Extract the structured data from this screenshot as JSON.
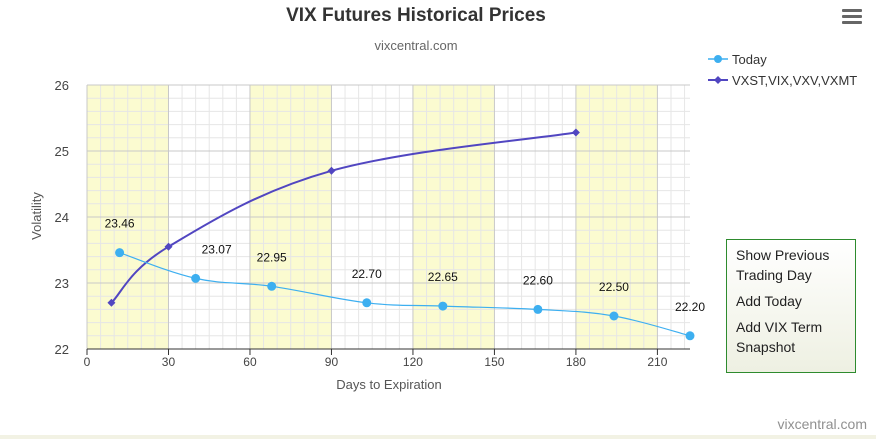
{
  "title": "VIX Futures Historical Prices",
  "subtitle": "vixcentral.com",
  "credit": "vixcentral.com",
  "menu_icon": "hamburger-menu-icon",
  "context_panel": {
    "links": [
      "Show Previous Trading Day",
      "Add Today",
      "Add VIX Term Snapshot"
    ]
  },
  "colors": {
    "today": "#3daff0",
    "term": "#5146c1",
    "band": "#fbfbd0",
    "panel_border": "#2e8b2e"
  },
  "chart_data": {
    "type": "line",
    "xlabel": "Days to Expiration",
    "ylabel": "Volatility",
    "xlim": [
      0,
      222
    ],
    "ylim": [
      22,
      26
    ],
    "x_ticks": [
      0,
      30,
      60,
      90,
      120,
      150,
      180,
      210
    ],
    "y_ticks": [
      22,
      23,
      24,
      25,
      26
    ],
    "x_tick_labels": [
      "0",
      "30",
      "60",
      "90",
      "120",
      "150",
      "180",
      "210"
    ],
    "y_tick_labels": [
      "22",
      "23",
      "24",
      "25",
      "26"
    ],
    "shaded_bands": [
      [
        0,
        30
      ],
      [
        60,
        90
      ],
      [
        120,
        150
      ],
      [
        180,
        210
      ]
    ],
    "grid": true,
    "legend_position": "top-right",
    "series": [
      {
        "name": "Today",
        "marker": "circle",
        "x": [
          12,
          40,
          68,
          103,
          131,
          166,
          194,
          222
        ],
        "y": [
          23.46,
          23.07,
          22.95,
          22.7,
          22.65,
          22.6,
          22.5,
          22.2
        ],
        "labels": [
          "23.46",
          "23.07",
          "22.95",
          "22.70",
          "22.65",
          "22.60",
          "22.50",
          "22.20"
        ]
      },
      {
        "name": "VXST,VIX,VXV,VXMT",
        "marker": "diamond",
        "x": [
          9,
          30,
          90,
          180
        ],
        "y": [
          22.7,
          23.55,
          24.7,
          25.28
        ]
      }
    ]
  }
}
